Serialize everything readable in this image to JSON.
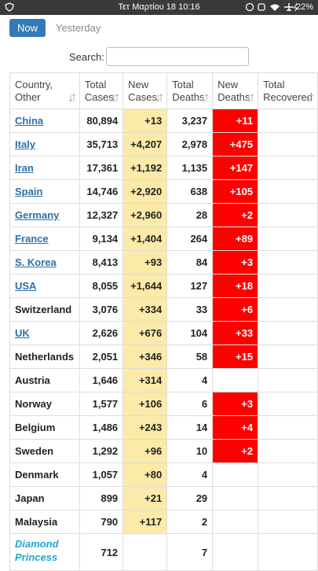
{
  "status_bar": {
    "time": "Τετ Μαρτίου 18 10:16",
    "battery": "22%"
  },
  "tabs": {
    "active": "Now",
    "other": "Yesterday"
  },
  "search": {
    "label": "Search:"
  },
  "table": {
    "headers": [
      "Country, Other",
      "Total Cases",
      "New Cases",
      "Total Deaths",
      "New Deaths",
      "Total Recovered"
    ],
    "rows": [
      {
        "style": "link",
        "cells": [
          "China",
          "80,894",
          "+13",
          "3,237",
          "+11",
          null
        ]
      },
      {
        "style": "link",
        "cells": [
          "Italy",
          "35,713",
          "+4,207",
          "2,978",
          "+475",
          null
        ]
      },
      {
        "style": "link",
        "cells": [
          "Iran",
          "17,361",
          "+1,192",
          "1,135",
          "+147",
          null
        ]
      },
      {
        "style": "link",
        "cells": [
          "Spain",
          "14,746",
          "+2,920",
          "638",
          "+105",
          null
        ]
      },
      {
        "style": "link",
        "cells": [
          "Germany",
          "12,327",
          "+2,960",
          "28",
          "+2",
          null
        ]
      },
      {
        "style": "link",
        "cells": [
          "France",
          "9,134",
          "+1,404",
          "264",
          "+89",
          null
        ]
      },
      {
        "style": "link",
        "cells": [
          "S. Korea",
          "8,413",
          "+93",
          "84",
          "+3",
          null
        ]
      },
      {
        "style": "link",
        "cells": [
          "USA",
          "8,055",
          "+1,644",
          "127",
          "+18",
          null
        ]
      },
      {
        "style": "plain",
        "cells": [
          "Switzerland",
          "3,076",
          "+334",
          "33",
          "+6",
          null
        ]
      },
      {
        "style": "link",
        "cells": [
          "UK",
          "2,626",
          "+676",
          "104",
          "+33",
          null
        ]
      },
      {
        "style": "plain",
        "cells": [
          "Netherlands",
          "2,051",
          "+346",
          "58",
          "+15",
          null
        ]
      },
      {
        "style": "plain",
        "cells": [
          "Austria",
          "1,646",
          "+314",
          "4",
          null,
          null
        ]
      },
      {
        "style": "plain",
        "cells": [
          "Norway",
          "1,577",
          "+106",
          "6",
          "+3",
          null
        ]
      },
      {
        "style": "plain",
        "cells": [
          "Belgium",
          "1,486",
          "+243",
          "14",
          "+4",
          null
        ]
      },
      {
        "style": "plain",
        "cells": [
          "Sweden",
          "1,292",
          "+96",
          "10",
          "+2",
          null
        ]
      },
      {
        "style": "plain",
        "cells": [
          "Denmark",
          "1,057",
          "+80",
          "4",
          null,
          null
        ]
      },
      {
        "style": "plain",
        "cells": [
          "Japan",
          "899",
          "+21",
          "29",
          null,
          null
        ]
      },
      {
        "style": "plain",
        "cells": [
          "Malaysia",
          "790",
          "+117",
          "2",
          null,
          null
        ]
      },
      {
        "style": "ship",
        "cells": [
          "Diamond Princess",
          "712",
          null,
          "7",
          null,
          null
        ]
      }
    ]
  }
}
